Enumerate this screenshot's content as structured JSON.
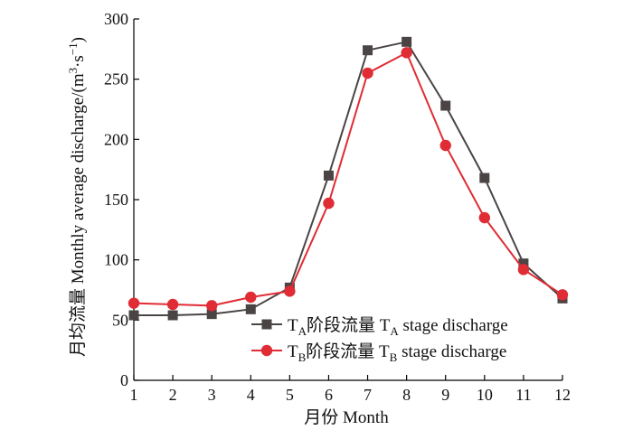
{
  "chart_data": {
    "type": "line",
    "xlabel": "月份 Month",
    "ylabel": "月均流量 Monthly average discharge/(m³·s⁻¹)",
    "ylabel_prefix": "月均流量 Monthly average discharge/(m",
    "ylabel_sup1": "3",
    "ylabel_mid": "·s",
    "ylabel_sup2": "−1",
    "ylabel_suffix": ")",
    "x": [
      1,
      2,
      3,
      4,
      5,
      6,
      7,
      8,
      9,
      10,
      11,
      12
    ],
    "xlim": [
      1,
      12
    ],
    "ylim": [
      0,
      300
    ],
    "yticks": [
      0,
      50,
      100,
      150,
      200,
      250,
      300
    ],
    "xticks": [
      1,
      2,
      3,
      4,
      5,
      6,
      7,
      8,
      9,
      10,
      11,
      12
    ],
    "legend_position": "lower-right",
    "grid": false,
    "series": [
      {
        "name": "TA阶段流量 TA stage discharge",
        "legend_parts": {
          "t1": "T",
          "s1": "A",
          "mid": "阶段流量 T",
          "s2": "A",
          "tail": " stage discharge"
        },
        "marker": "square",
        "color": "#4a4544",
        "values": [
          54,
          54,
          55,
          59,
          77,
          170,
          274,
          281,
          228,
          168,
          97,
          68
        ]
      },
      {
        "name": "TB阶段流量 TB stage discharge",
        "legend_parts": {
          "t1": "T",
          "s1": "B",
          "mid": "阶段流量 T",
          "s2": "B",
          "tail": " stage discharge"
        },
        "marker": "circle",
        "color": "#e02c35",
        "values": [
          64,
          63,
          62,
          69,
          74,
          147,
          255,
          272,
          195,
          135,
          92,
          71
        ]
      }
    ]
  }
}
